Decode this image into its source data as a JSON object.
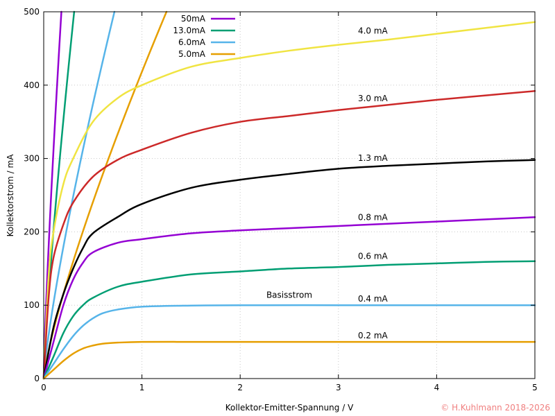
{
  "chart_data": {
    "type": "line",
    "title": "",
    "xlabel": "Kollektor-Emitter-Spannung / V",
    "ylabel": "Kollektorstrom / mA",
    "xlim": [
      0,
      5
    ],
    "ylim": [
      0,
      500
    ],
    "xticks": [
      0,
      1,
      2,
      3,
      4,
      5
    ],
    "yticks": [
      0,
      100,
      200,
      300,
      400,
      500
    ],
    "xtick_labels": [
      "0",
      "1",
      "2",
      "3",
      "4",
      "5"
    ],
    "ytick_labels": [
      "0",
      "100",
      "200",
      "300",
      "400",
      "500"
    ],
    "grid": true,
    "legend_position": "top-left",
    "annotations": [
      {
        "name": "basisstrom-annotation",
        "text": "Basisstrom",
        "x": 2.5,
        "y": 110
      }
    ],
    "series": [
      {
        "name": "50mA",
        "label": "",
        "legend": true,
        "color": "#9400d3",
        "x_endpoint": 0.18,
        "y_endpoint": 500
      },
      {
        "name": "13.0mA",
        "label": "",
        "legend": true,
        "color": "#009e73",
        "x_endpoint": 0.31,
        "y_endpoint": 500
      },
      {
        "name": "6.0mA",
        "label": "",
        "legend": true,
        "color": "#56b4e9",
        "x_endpoint": 0.72,
        "y_endpoint": 500
      },
      {
        "name": "5.0mA",
        "label": "",
        "legend": true,
        "color": "#e69f00",
        "x_endpoint": 1.25,
        "y_endpoint": 500
      },
      {
        "name": "4.0mA",
        "label": "4.0 mA",
        "label_x": 3.35,
        "label_y": 470,
        "legend": false,
        "color": "#f0e442",
        "x": [
          0,
          0.05,
          0.1,
          0.2,
          0.3,
          0.5,
          0.75,
          1.0,
          1.5,
          2.0,
          2.5,
          3.0,
          3.5,
          4.0,
          4.5,
          5.0
        ],
        "y": [
          0,
          140,
          200,
          265,
          300,
          350,
          382,
          400,
          425,
          437,
          447,
          455,
          462,
          470,
          478,
          486
        ]
      },
      {
        "name": "3.0mA",
        "label": "3.0 mA",
        "label_x": 3.35,
        "label_y": 378,
        "legend": false,
        "color": "#cc2929",
        "x": [
          0,
          0.05,
          0.1,
          0.2,
          0.3,
          0.5,
          0.75,
          1.0,
          1.5,
          2.0,
          2.5,
          3.0,
          3.5,
          4.0,
          4.5,
          5.0
        ],
        "y": [
          0,
          110,
          165,
          210,
          240,
          275,
          298,
          312,
          335,
          350,
          358,
          366,
          373,
          380,
          386,
          392
        ]
      },
      {
        "name": "1.3mA",
        "label": "1.3 mA",
        "label_x": 3.35,
        "label_y": 297,
        "legend": false,
        "color": "#000000",
        "x": [
          0,
          0.1,
          0.2,
          0.3,
          0.4,
          0.5,
          0.75,
          1.0,
          1.5,
          2.0,
          2.5,
          3.0,
          3.5,
          4.0,
          4.5,
          5.0
        ],
        "y": [
          0,
          70,
          115,
          150,
          178,
          198,
          220,
          238,
          260,
          271,
          279,
          286,
          290,
          293,
          296,
          298
        ]
      },
      {
        "name": "0.8mA",
        "label": "0.8 mA",
        "label_x": 3.35,
        "label_y": 216,
        "legend": false,
        "color": "#9400d3",
        "x": [
          0,
          0.1,
          0.2,
          0.3,
          0.4,
          0.5,
          0.75,
          1.0,
          1.5,
          2.0,
          2.5,
          3.0,
          3.5,
          4.0,
          4.5,
          5.0
        ],
        "y": [
          0,
          50,
          100,
          135,
          158,
          172,
          185,
          190,
          198,
          202,
          205,
          208,
          211,
          214,
          217,
          220
        ]
      },
      {
        "name": "0.6mA",
        "label": "0.6 mA",
        "label_x": 3.35,
        "label_y": 163,
        "legend": false,
        "color": "#009e73",
        "x": [
          0,
          0.1,
          0.2,
          0.3,
          0.4,
          0.5,
          0.75,
          1.0,
          1.5,
          2.0,
          2.5,
          3.0,
          3.5,
          4.0,
          4.5,
          5.0
        ],
        "y": [
          0,
          30,
          62,
          85,
          100,
          110,
          125,
          132,
          142,
          146,
          150,
          152,
          155,
          157,
          159,
          160
        ]
      },
      {
        "name": "0.4mA",
        "label": "0.4 mA",
        "label_x": 3.35,
        "label_y": 105,
        "legend": false,
        "color": "#56b4e9",
        "x": [
          0,
          0.1,
          0.2,
          0.3,
          0.4,
          0.5,
          0.6,
          0.75,
          1.0,
          1.5,
          2.0,
          3.0,
          4.0,
          5.0
        ],
        "y": [
          0,
          20,
          40,
          58,
          72,
          82,
          89,
          94,
          98,
          99.5,
          100,
          100,
          100,
          100
        ]
      },
      {
        "name": "0.2mA",
        "label": "0.2 mA",
        "label_x": 3.35,
        "label_y": 55,
        "legend": false,
        "color": "#e69f00",
        "x": [
          0,
          0.1,
          0.2,
          0.3,
          0.4,
          0.5,
          0.6,
          0.75,
          1.0,
          1.5,
          2.0,
          3.0,
          4.0,
          5.0
        ],
        "y": [
          0,
          12,
          24,
          34,
          41,
          45,
          47.5,
          49,
          50,
          50,
          50,
          50,
          50,
          50
        ]
      }
    ]
  },
  "copyright": {
    "text": "© H.Kuhlmann 2018-2026",
    "color": "#f08080"
  }
}
